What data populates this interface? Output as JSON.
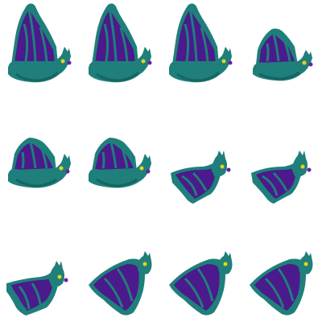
{
  "sprite_sheet": {
    "subject": "bat",
    "rows": 3,
    "columns": 4,
    "colors": {
      "body_teal": "#1f7f7a",
      "body_dark": "#146662",
      "wing_purple": "#4b1a8c",
      "wing_purple_dark": "#3a1470",
      "eye_yellow": "#e8d21a",
      "nose_purple": "#6a1ea8",
      "background": "#ffffff"
    },
    "frames": [
      {
        "pose": "wing-up"
      },
      {
        "pose": "wing-up"
      },
      {
        "pose": "wing-up"
      },
      {
        "pose": "wing-mid-up"
      },
      {
        "pose": "wing-mid"
      },
      {
        "pose": "wing-mid"
      },
      {
        "pose": "wing-down"
      },
      {
        "pose": "wing-down"
      },
      {
        "pose": "wing-down-low"
      },
      {
        "pose": "wing-fold"
      },
      {
        "pose": "wing-fold"
      },
      {
        "pose": "wing-fold"
      }
    ]
  }
}
